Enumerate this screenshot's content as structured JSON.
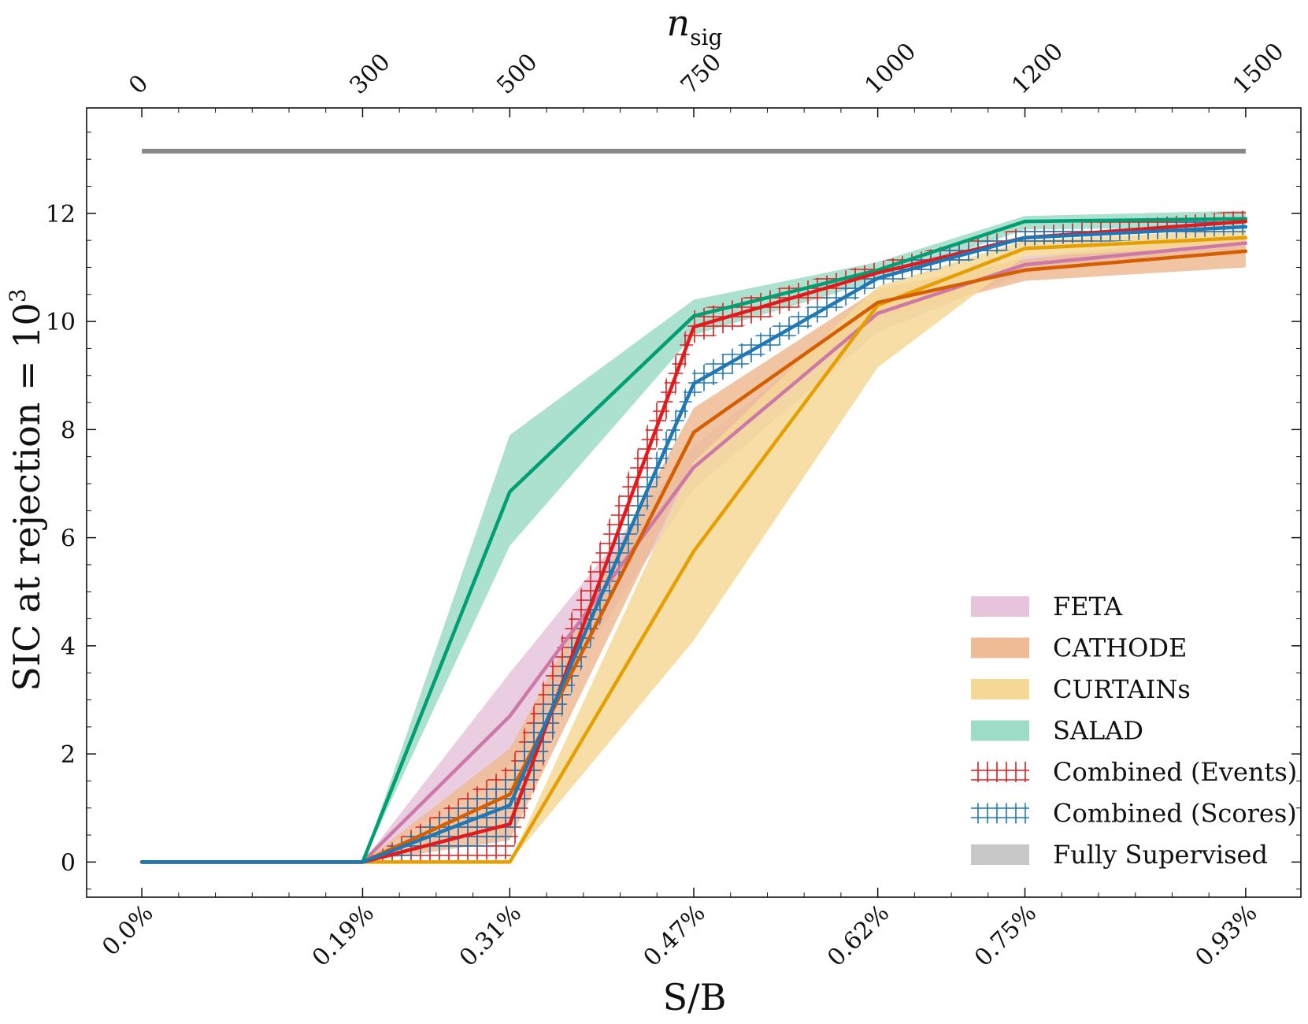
{
  "chart_data": {
    "type": "line",
    "xlabel": "S/B",
    "ylabel": "SIC at rejection = 10",
    "ylabel_superscript": "3",
    "top_xlabel": "n",
    "top_xlabel_subscript": "sig",
    "ylim": [
      -0.65,
      13.95
    ],
    "yticks": [
      0,
      2,
      4,
      6,
      8,
      10,
      12
    ],
    "x": [
      0,
      300,
      500,
      750,
      1000,
      1200,
      1500
    ],
    "xlim": [
      -75,
      1575
    ],
    "bottom_tick_labels": [
      "0.0%",
      "0.19%",
      "0.31%",
      "0.47%",
      "0.62%",
      "0.75%",
      "0.93%"
    ],
    "top_tick_labels": [
      "0",
      "300",
      "500",
      "750",
      "1000",
      "1200",
      "1500"
    ],
    "legend_position": "lower-right",
    "series": [
      {
        "name": "FETA",
        "key": "feta",
        "color": "#cc79a7",
        "fill": "#e8c4dc",
        "style": "band",
        "values": [
          0,
          0,
          2.7,
          7.3,
          10.15,
          11.05,
          11.45
        ],
        "lower": [
          0,
          0,
          1.8,
          6.9,
          9.8,
          10.9,
          11.3
        ],
        "upper": [
          0,
          0,
          3.5,
          7.7,
          10.4,
          11.2,
          11.6
        ]
      },
      {
        "name": "CATHODE",
        "key": "cathode",
        "color": "#d55e00",
        "fill": "#eebb94",
        "style": "band",
        "values": [
          0,
          0,
          1.25,
          7.95,
          10.35,
          10.95,
          11.3
        ],
        "lower": [
          0,
          0,
          0.4,
          7.4,
          10.05,
          10.75,
          11.0
        ],
        "upper": [
          0,
          0,
          2.1,
          8.4,
          10.6,
          11.15,
          11.6
        ]
      },
      {
        "name": "CURTAINs",
        "key": "curtains",
        "color": "#e69f00",
        "fill": "#f5d896",
        "style": "band",
        "values": [
          0,
          0,
          0,
          5.75,
          10.3,
          11.35,
          11.55
        ],
        "lower": [
          0,
          0,
          0,
          4.1,
          9.15,
          11.2,
          11.4
        ],
        "upper": [
          0,
          0,
          0,
          7.4,
          10.65,
          11.5,
          11.7
        ]
      },
      {
        "name": "SALAD",
        "key": "salad",
        "color": "#009e73",
        "fill": "#9ddcc7",
        "style": "band",
        "values": [
          0,
          0,
          6.85,
          10.1,
          10.95,
          11.85,
          11.9
        ],
        "lower": [
          0,
          0,
          5.85,
          9.75,
          10.75,
          11.7,
          11.75
        ],
        "upper": [
          0,
          0,
          7.9,
          10.4,
          11.1,
          11.95,
          12.05
        ]
      },
      {
        "name": "Combined (Events)",
        "key": "events",
        "color": "#e31a1c",
        "fill": "none",
        "style": "hatch",
        "values": [
          0,
          0,
          0.7,
          9.9,
          10.9,
          11.55,
          11.85
        ],
        "lower": [
          0,
          0,
          0.05,
          9.6,
          10.75,
          11.4,
          11.7
        ],
        "upper": [
          0,
          0,
          1.8,
          10.2,
          11.1,
          11.75,
          12.05
        ]
      },
      {
        "name": "Combined (Scores)",
        "key": "scores",
        "color": "#1f77b4",
        "fill": "none",
        "style": "hatch",
        "values": [
          0,
          0,
          1.05,
          8.85,
          10.8,
          11.55,
          11.75
        ],
        "lower": [
          0,
          0,
          0.35,
          8.6,
          10.65,
          11.4,
          11.6
        ],
        "upper": [
          0,
          0,
          1.6,
          9.1,
          11.0,
          11.7,
          11.9
        ]
      },
      {
        "name": "Fully Supervised",
        "key": "supervised",
        "color": "#888888",
        "fill": "#c8c8c8",
        "style": "flat",
        "values": [
          13.15,
          13.15,
          13.15,
          13.15,
          13.15,
          13.15,
          13.15
        ]
      }
    ]
  }
}
